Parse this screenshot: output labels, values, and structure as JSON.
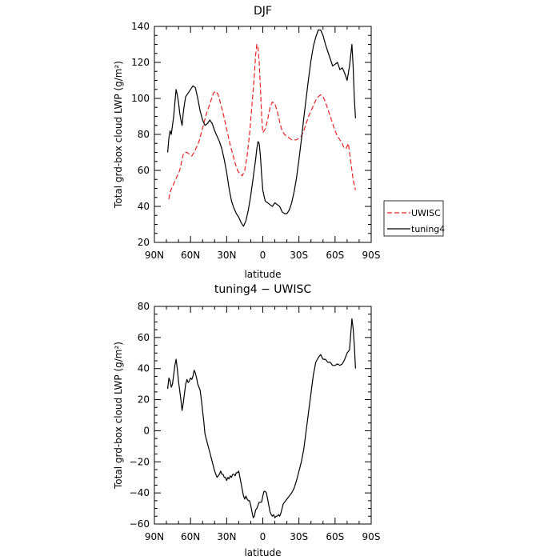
{
  "chart_data": [
    {
      "type": "line",
      "title": "DJF",
      "xlabel": "latitude",
      "ylabel": "Total grd-box cloud LWP (g/m²)",
      "xlim": [
        90,
        -90
      ],
      "ylim": [
        20,
        140
      ],
      "grid": false,
      "legend_position": "right",
      "x_tick_values": [
        90,
        60,
        30,
        0,
        -30,
        -60,
        -90
      ],
      "x_tick_labels": [
        "90N",
        "60N",
        "30N",
        "0",
        "30S",
        "60S",
        "90S"
      ],
      "y_tick_values": [
        20,
        40,
        60,
        80,
        100,
        120,
        140
      ],
      "y_tick_labels": [
        "20",
        "40",
        "60",
        "80",
        "100",
        "120",
        "140"
      ],
      "series": [
        {
          "name": "UWISC",
          "color": "#ee2222",
          "dash": "dashed",
          "x": [
            78,
            77,
            75,
            73,
            71,
            69,
            68,
            67,
            66,
            65,
            63,
            61,
            59,
            57,
            55,
            53,
            51,
            49,
            47,
            45,
            43,
            41,
            39,
            37,
            35,
            33,
            31,
            29,
            27,
            25,
            23,
            21,
            19,
            17,
            15,
            13,
            11,
            9,
            7,
            6,
            5,
            4,
            3,
            2,
            1,
            0,
            -2,
            -4,
            -6,
            -8,
            -10,
            -12,
            -14,
            -16,
            -18,
            -20,
            -22,
            -24,
            -26,
            -28,
            -30,
            -32,
            -34,
            -36,
            -38,
            -40,
            -42,
            -44,
            -46,
            -48,
            -50,
            -52,
            -54,
            -56,
            -58,
            -60,
            -62,
            -64,
            -66,
            -67,
            -69,
            -71,
            -73,
            -75,
            -77
          ],
          "y": [
            44,
            48,
            51,
            54,
            57,
            60,
            63,
            66,
            69,
            70,
            70,
            69,
            68,
            70,
            73,
            76,
            81,
            86,
            91,
            95,
            99,
            103,
            104,
            102,
            97,
            92,
            86,
            80,
            74,
            69,
            64,
            60,
            58,
            57,
            60,
            68,
            80,
            96,
            113,
            124,
            130,
            128,
            120,
            106,
            91,
            81,
            83,
            88,
            95,
            98,
            97,
            93,
            87,
            82,
            80,
            79,
            78,
            77,
            77,
            77,
            78,
            79,
            82,
            86,
            90,
            93,
            96,
            99,
            101,
            102,
            101,
            98,
            94,
            90,
            86,
            82,
            79,
            77,
            75,
            73,
            72,
            75,
            65,
            55,
            49
          ]
        },
        {
          "name": "tuning4",
          "color": "#000000",
          "dash": "solid",
          "x": [
            79,
            78,
            77,
            76,
            74,
            72,
            71,
            70,
            69,
            68,
            67,
            66,
            65,
            64,
            62,
            60,
            58,
            56,
            54,
            52,
            50,
            48,
            46,
            44,
            42,
            40,
            38,
            36,
            34,
            32,
            30,
            28,
            26,
            24,
            22,
            20,
            18,
            16,
            14,
            12,
            10,
            8,
            6,
            5,
            4,
            3,
            2,
            1,
            0,
            -2,
            -4,
            -6,
            -8,
            -10,
            -12,
            -14,
            -16,
            -18,
            -20,
            -22,
            -24,
            -26,
            -28,
            -30,
            -32,
            -34,
            -36,
            -38,
            -40,
            -42,
            -44,
            -46,
            -48,
            -50,
            -52,
            -54,
            -56,
            -58,
            -60,
            -62,
            -64,
            -66,
            -68,
            -70,
            -72,
            -74,
            -75,
            -76,
            -77
          ],
          "y": [
            70,
            78,
            82,
            80,
            90,
            105,
            102,
            98,
            92,
            88,
            85,
            92,
            97,
            101,
            103,
            105,
            107,
            106,
            100,
            93,
            88,
            85,
            86,
            88,
            86,
            82,
            79,
            76,
            72,
            66,
            59,
            50,
            43,
            39,
            36,
            34,
            31,
            29,
            32,
            38,
            46,
            56,
            66,
            72,
            76,
            75,
            68,
            58,
            49,
            43,
            42,
            41,
            40,
            42,
            41,
            40,
            37,
            36,
            36,
            38,
            42,
            48,
            56,
            66,
            77,
            89,
            100,
            111,
            121,
            129,
            134,
            138,
            138,
            135,
            130,
            126,
            122,
            118,
            119,
            120,
            116,
            117,
            114,
            110,
            118,
            130,
            118,
            100,
            89
          ]
        }
      ]
    },
    {
      "type": "line",
      "title": "tuning4 − UWISC",
      "xlabel": "latitude",
      "ylabel": "Total grd-box cloud LWP (g/m²)",
      "xlim": [
        90,
        -90
      ],
      "ylim": [
        -60,
        80
      ],
      "grid": false,
      "x_tick_values": [
        90,
        60,
        30,
        0,
        -30,
        -60,
        -90
      ],
      "x_tick_labels": [
        "90N",
        "60N",
        "30N",
        "0",
        "30S",
        "60S",
        "90S"
      ],
      "y_tick_values": [
        -60,
        -40,
        -20,
        0,
        20,
        40,
        60,
        80
      ],
      "y_tick_labels": [
        "−60",
        "−40",
        "−20",
        "0",
        "20",
        "40",
        "60",
        "80"
      ],
      "series": [
        {
          "color": "#000000",
          "dash": "solid",
          "x": [
            79,
            78,
            77,
            76,
            75,
            74,
            73,
            72,
            71,
            70,
            69,
            68,
            67,
            66,
            65,
            64,
            63,
            62,
            61,
            60,
            59,
            58,
            57,
            56,
            55,
            54,
            53,
            52,
            51,
            50,
            49,
            48,
            46,
            44,
            42,
            40,
            38,
            36,
            35,
            34,
            33,
            32,
            31,
            30,
            29,
            28,
            27,
            26,
            25,
            24,
            23,
            22,
            21,
            20,
            19,
            18,
            17,
            16,
            15,
            14,
            13,
            12,
            11,
            10,
            9,
            8,
            7,
            6,
            5,
            4,
            3,
            2,
            1,
            0,
            -1,
            -2,
            -3,
            -4,
            -5,
            -6,
            -7,
            -8,
            -9,
            -10,
            -11,
            -12,
            -13,
            -14,
            -15,
            -16,
            -17,
            -18,
            -19,
            -20,
            -22,
            -24,
            -26,
            -28,
            -30,
            -32,
            -34,
            -36,
            -38,
            -40,
            -42,
            -44,
            -46,
            -48,
            -50,
            -52,
            -54,
            -56,
            -58,
            -60,
            -62,
            -64,
            -66,
            -68,
            -70,
            -72,
            -73,
            -74,
            -75,
            -76,
            -77
          ],
          "y": [
            27,
            34,
            32,
            28,
            30,
            36,
            42,
            46,
            40,
            32,
            26,
            20,
            13,
            18,
            24,
            30,
            33,
            31,
            32,
            34,
            33,
            35,
            39,
            37,
            34,
            30,
            28,
            26,
            20,
            13,
            6,
            -2,
            -8,
            -14,
            -20,
            -26,
            -30,
            -28,
            -26,
            -28,
            -28,
            -30,
            -30,
            -32,
            -30,
            -31,
            -29,
            -30,
            -28,
            -28,
            -29,
            -27,
            -27,
            -26,
            -30,
            -34,
            -38,
            -42,
            -44,
            -42,
            -44,
            -45,
            -45,
            -48,
            -52,
            -56,
            -55,
            -51,
            -50,
            -48,
            -46,
            -46,
            -46,
            -42,
            -39,
            -39,
            -40,
            -44,
            -48,
            -52,
            -54,
            -55,
            -54,
            -56,
            -55,
            -55,
            -54,
            -55,
            -53,
            -50,
            -47,
            -46,
            -45,
            -44,
            -42,
            -40,
            -37,
            -32,
            -26,
            -20,
            -12,
            0,
            12,
            24,
            36,
            44,
            47,
            49,
            46,
            46,
            44,
            44,
            42,
            42,
            43,
            42,
            43,
            46,
            50,
            52,
            62,
            72,
            66,
            55,
            40
          ]
        }
      ]
    }
  ]
}
